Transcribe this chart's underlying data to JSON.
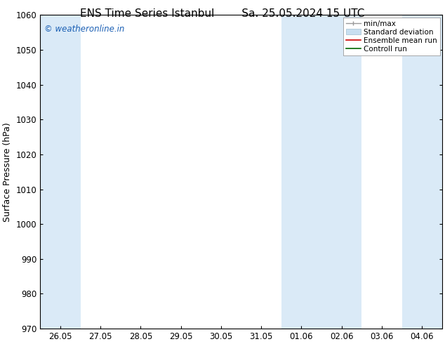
{
  "title_left": "ENS Time Series Istanbul",
  "title_right": "Sa. 25.05.2024 15 UTC",
  "ylabel": "Surface Pressure (hPa)",
  "ylim": [
    970,
    1060
  ],
  "yticks": [
    970,
    980,
    990,
    1000,
    1010,
    1020,
    1030,
    1040,
    1050,
    1060
  ],
  "x_tick_labels": [
    "26.05",
    "27.05",
    "28.05",
    "29.05",
    "30.05",
    "31.05",
    "01.06",
    "02.06",
    "03.06",
    "04.06"
  ],
  "x_tick_positions": [
    0,
    1,
    2,
    3,
    4,
    5,
    6,
    7,
    8,
    9
  ],
  "xlim": [
    -0.5,
    9.5
  ],
  "shaded_bands": [
    {
      "x_start": -0.5,
      "x_end": 0.5
    },
    {
      "x_start": 5.5,
      "x_end": 7.5
    },
    {
      "x_start": 8.5,
      "x_end": 9.5
    }
  ],
  "shaded_color": "#daeaf7",
  "background_color": "#ffffff",
  "watermark_text": "© weatheronline.in",
  "watermark_color": "#1a5fb4",
  "legend_items": [
    {
      "label": "min/max",
      "type": "minmax"
    },
    {
      "label": "Standard deviation",
      "type": "stddev"
    },
    {
      "label": "Ensemble mean run",
      "type": "line",
      "color": "#cc0000"
    },
    {
      "label": "Controll run",
      "type": "line",
      "color": "#006600"
    }
  ],
  "title_fontsize": 11,
  "ylabel_fontsize": 9,
  "tick_fontsize": 8.5,
  "legend_fontsize": 7.5,
  "watermark_fontsize": 8.5
}
